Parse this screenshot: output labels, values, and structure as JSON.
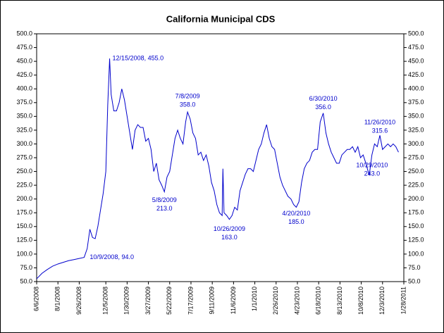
{
  "chart_data": {
    "type": "line",
    "title": "California Municipal CDS",
    "x": [
      "6/6/2008",
      "6/20/2008",
      "7/4/2008",
      "7/18/2008",
      "8/1/2008",
      "8/15/2008",
      "8/29/2008",
      "9/12/2008",
      "9/26/2008",
      "10/9/2008",
      "10/17/2008",
      "10/24/2008",
      "10/31/2008",
      "11/7/2008",
      "11/14/2008",
      "11/21/2008",
      "11/28/2008",
      "12/5/2008",
      "12/10/2008",
      "12/15/2008",
      "12/19/2008",
      "12/26/2008",
      "1/2/2009",
      "1/9/2009",
      "1/16/2009",
      "1/23/2009",
      "1/30/2009",
      "2/6/2009",
      "2/13/2009",
      "2/20/2009",
      "2/27/2009",
      "3/6/2009",
      "3/13/2009",
      "3/20/2009",
      "3/27/2009",
      "4/3/2009",
      "4/10/2009",
      "4/17/2009",
      "4/24/2009",
      "5/1/2009",
      "5/8/2009",
      "5/15/2009",
      "5/22/2009",
      "5/29/2009",
      "6/5/2009",
      "6/12/2009",
      "6/19/2009",
      "6/26/2009",
      "7/3/2009",
      "7/8/2009",
      "7/15/2009",
      "7/22/2009",
      "7/29/2009",
      "8/5/2009",
      "8/12/2009",
      "8/19/2009",
      "8/26/2009",
      "9/2/2009",
      "9/9/2009",
      "9/16/2009",
      "9/23/2009",
      "9/30/2009",
      "10/7/2009",
      "10/9/2009",
      "10/12/2009",
      "10/19/2009",
      "10/26/2009",
      "11/2/2009",
      "11/9/2009",
      "11/16/2009",
      "11/23/2009",
      "11/30/2009",
      "12/7/2009",
      "12/14/2009",
      "12/21/2009",
      "12/28/2009",
      "1/4/2010",
      "1/11/2010",
      "1/18/2010",
      "1/25/2010",
      "2/1/2010",
      "2/8/2010",
      "2/15/2010",
      "2/22/2010",
      "3/1/2010",
      "3/8/2010",
      "3/15/2010",
      "3/22/2010",
      "3/29/2010",
      "4/6/2010",
      "4/13/2010",
      "4/20/2010",
      "4/27/2010",
      "5/4/2010",
      "5/11/2010",
      "5/18/2010",
      "5/25/2010",
      "6/1/2010",
      "6/8/2010",
      "6/15/2010",
      "6/22/2010",
      "6/30/2010",
      "7/7/2010",
      "7/14/2010",
      "7/21/2010",
      "7/28/2010",
      "8/4/2010",
      "8/11/2010",
      "8/18/2010",
      "8/25/2010",
      "9/1/2010",
      "9/8/2010",
      "9/15/2010",
      "9/22/2010",
      "9/29/2010",
      "10/6/2010",
      "10/13/2010",
      "10/20/2010",
      "10/29/2010",
      "11/5/2010",
      "11/12/2010",
      "11/19/2010",
      "11/26/2010",
      "12/3/2010",
      "12/10/2010",
      "12/17/2010",
      "12/24/2010",
      "12/31/2010",
      "1/7/2011",
      "1/14/2011"
    ],
    "series": [
      {
        "color": "#0000cc",
        "values": [
          55,
          65,
          72,
          78,
          82,
          85,
          88,
          90,
          92,
          94,
          110,
          145,
          130,
          128,
          150,
          180,
          210,
          250,
          370,
          455,
          390,
          360,
          360,
          375,
          400,
          380,
          350,
          320,
          290,
          325,
          335,
          330,
          330,
          305,
          310,
          290,
          250,
          265,
          235,
          225,
          213,
          240,
          250,
          280,
          310,
          325,
          310,
          300,
          340,
          358,
          345,
          320,
          310,
          280,
          285,
          270,
          280,
          260,
          230,
          215,
          190,
          175,
          170,
          255,
          175,
          170,
          163,
          170,
          185,
          180,
          215,
          230,
          245,
          255,
          255,
          250,
          270,
          290,
          300,
          320,
          335,
          310,
          295,
          290,
          265,
          240,
          225,
          215,
          205,
          200,
          190,
          185,
          195,
          230,
          255,
          265,
          270,
          285,
          290,
          290,
          340,
          356,
          320,
          300,
          285,
          275,
          265,
          265,
          280,
          285,
          290,
          290,
          295,
          285,
          295,
          275,
          280,
          265,
          243,
          280,
          300,
          295,
          315.6,
          290,
          295,
          300,
          295,
          300,
          295,
          285
        ]
      }
    ],
    "xlim": [
      "6/6/2008",
      "1/28/2011"
    ],
    "xticks": [
      "6/6/2008",
      "8/1/2008",
      "9/26/2008",
      "12/5/2008",
      "1/30/2009",
      "3/27/2009",
      "5/22/2009",
      "7/17/2009",
      "9/11/2009",
      "11/6/2009",
      "1/1/2010",
      "2/26/2010",
      "4/23/2010",
      "6/18/2010",
      "8/13/2010",
      "10/8/2010",
      "12/3/2010",
      "1/28/2011"
    ],
    "ylim": [
      50,
      500
    ],
    "yticks": [
      {
        "value": 50,
        "label": "50.0"
      },
      {
        "value": 75,
        "label": "75.0"
      },
      {
        "value": 100,
        "label": "100.0"
      },
      {
        "value": 125,
        "label": "125.0"
      },
      {
        "value": 150,
        "label": "150.0"
      },
      {
        "value": 175,
        "label": "175.0"
      },
      {
        "value": 200,
        "label": "200.0"
      },
      {
        "value": 225,
        "label": "225.0"
      },
      {
        "value": 250,
        "label": "250.0"
      },
      {
        "value": 275,
        "label": "275.0"
      },
      {
        "value": 300,
        "label": "300.0"
      },
      {
        "value": 325,
        "label": "325.0"
      },
      {
        "value": 350,
        "label": "350.0"
      },
      {
        "value": 375,
        "label": "375.0"
      },
      {
        "value": 400,
        "label": "400.0"
      },
      {
        "value": 425,
        "label": "425.0"
      },
      {
        "value": 450,
        "label": "450.0"
      },
      {
        "value": 475,
        "label": "475.0"
      },
      {
        "value": 500,
        "label": "500.0"
      }
    ],
    "annotations": [
      {
        "x": "12/15/2008",
        "y": 455,
        "label": "12/15/2008, 455.0"
      },
      {
        "x": "10/9/2008",
        "y": 94,
        "label": "10/9/2008, 94.0"
      },
      {
        "x": "7/8/2009",
        "y": 358,
        "lines": [
          "7/8/2009",
          "358.0"
        ]
      },
      {
        "x": "5/8/2009",
        "y": 213,
        "lines": [
          "5/8/2009",
          "213.0"
        ]
      },
      {
        "x": "10/26/2009",
        "y": 163,
        "lines": [
          "10/26/2009",
          "163.0"
        ]
      },
      {
        "x": "4/20/2010",
        "y": 185,
        "lines": [
          "4/20/2010",
          "185.0"
        ]
      },
      {
        "x": "6/30/2010",
        "y": 356,
        "lines": [
          "6/30/2010",
          "356.0"
        ]
      },
      {
        "x": "11/26/2010",
        "y": 315.6,
        "lines": [
          "11/26/2010",
          "315.6"
        ]
      },
      {
        "x": "10/29/2010",
        "y": 243,
        "lines": [
          "10/29/2010",
          "243.0"
        ]
      }
    ]
  }
}
